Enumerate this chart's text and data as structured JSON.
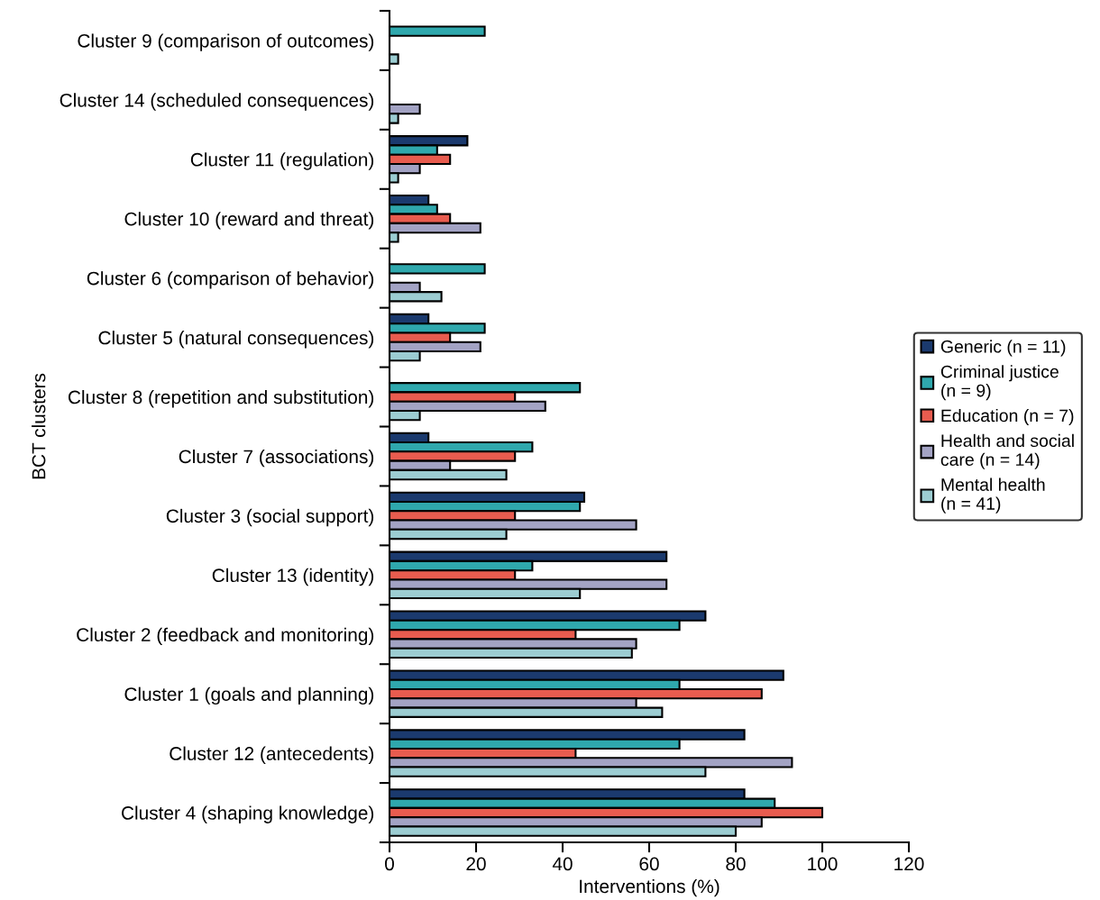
{
  "chart_data": {
    "type": "bar",
    "orientation": "horizontal",
    "xlabel": "Interventions (%)",
    "ylabel": "BCT clusters",
    "categories": [
      "Cluster 9 (comparison of outcomes)",
      "Cluster 14 (scheduled consequences)",
      "Cluster 11 (regulation)",
      "Cluster 10 (reward and threat)",
      "Cluster 6 (comparison of behavior)",
      "Cluster 5 (natural consequences)",
      "Cluster 8 (repetition and substitution)",
      "Cluster 7 (associations)",
      "Cluster 3 (social support)",
      "Cluster 13 (identity)",
      "Cluster 2 (feedback and monitoring)",
      "Cluster 1 (goals and planning)",
      "Cluster 12 (antecedents)",
      "Cluster 4 (shaping knowledge)"
    ],
    "series": [
      {
        "name": "Generic (n = 11)",
        "color": "#1b3a6e",
        "values": [
          0,
          0,
          18,
          9,
          0,
          9,
          0,
          9,
          45,
          64,
          73,
          91,
          82,
          82
        ]
      },
      {
        "name": "Criminal justice\n(n = 9)",
        "color": "#2fa8ad",
        "values": [
          22,
          0,
          11,
          11,
          22,
          22,
          44,
          33,
          44,
          33,
          67,
          67,
          67,
          89
        ]
      },
      {
        "name": "Education (n = 7)",
        "color": "#e85c4f",
        "values": [
          0,
          0,
          14,
          14,
          0,
          14,
          29,
          29,
          29,
          29,
          43,
          86,
          43,
          100
        ]
      },
      {
        "name": "Health and social\ncare (n = 14)",
        "color": "#a3a3c4",
        "values": [
          0,
          7,
          7,
          21,
          7,
          21,
          36,
          14,
          57,
          64,
          57,
          57,
          93,
          86
        ]
      },
      {
        "name": "Mental health\n(n = 41)",
        "color": "#9ccdd2",
        "values": [
          2,
          2,
          2,
          2,
          12,
          7,
          7,
          27,
          27,
          44,
          56,
          63,
          73,
          80
        ]
      }
    ],
    "xlim": [
      0,
      120
    ],
    "xticks": [
      0,
      20,
      40,
      60,
      80,
      100,
      120
    ],
    "grid": false,
    "legend": "right"
  }
}
